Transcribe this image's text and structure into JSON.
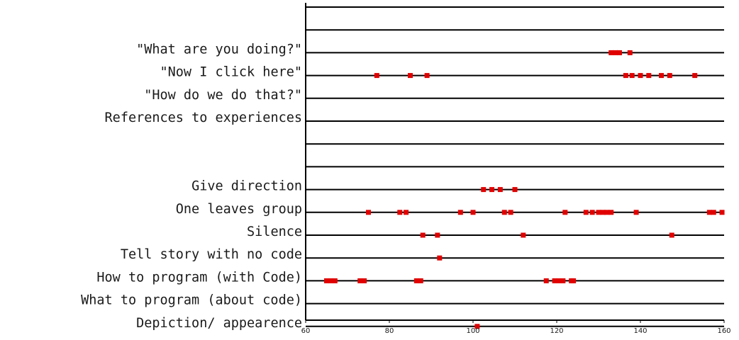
{
  "chart_data": {
    "type": "scatter",
    "title": "",
    "xlabel": "",
    "ylabel": "",
    "xlim": [
      60,
      160
    ],
    "x_ticks": [
      60,
      80,
      100,
      120,
      140,
      160
    ],
    "marker_color": "#e00000",
    "grid": false,
    "rows": [
      {
        "label": "",
        "x": []
      },
      {
        "label": "",
        "x": []
      },
      {
        "label": "\"What are you doing?\"",
        "x": [
          133,
          134,
          135,
          137.5
        ]
      },
      {
        "label": "\"Now I click here\"",
        "x": [
          77,
          85,
          89,
          136.5,
          138,
          140,
          142,
          145,
          147,
          153
        ]
      },
      {
        "label": "\"How do we do that?\"",
        "x": []
      },
      {
        "label": "References to experiences",
        "x": []
      },
      {
        "label": "",
        "x": []
      },
      {
        "label": "",
        "x": []
      },
      {
        "label": "Give direction",
        "x": [
          102.5,
          104.5,
          106.5,
          110
        ]
      },
      {
        "label": "One leaves group",
        "x": [
          75,
          82.5,
          84,
          97,
          100,
          107.5,
          109,
          122,
          127,
          128.5,
          130,
          131,
          132,
          133,
          139,
          156.5,
          157.5,
          159.5
        ]
      },
      {
        "label": "Silence",
        "x": [
          88,
          91.5,
          112,
          147.5
        ]
      },
      {
        "label": "Tell story with no code",
        "x": [
          92
        ]
      },
      {
        "label": "How to program (with Code)",
        "x": [
          65,
          66,
          67,
          73,
          74,
          86.5,
          87.5,
          117.5,
          119.5,
          120.5,
          121.5,
          123.5,
          124
        ]
      },
      {
        "label": "What to program (about code)",
        "x": []
      },
      {
        "label": "Depiction/ appearence",
        "x": [
          101
        ]
      }
    ]
  }
}
